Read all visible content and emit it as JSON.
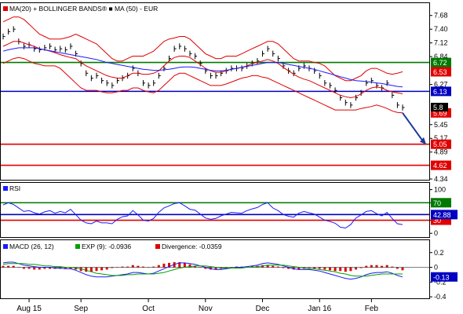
{
  "chart_data": [
    {
      "panel": "price",
      "type": "line",
      "title": "MA(20) + BOLLINGER BANDS® ■ MA (50) - EUR",
      "legend": [
        {
          "name": "MA(20) + BOLLINGER BANDS®",
          "color": "#e00000"
        },
        {
          "name": "MA (50) - EUR",
          "color": "#1a1aff"
        }
      ],
      "ylim": [
        4.34,
        7.9
      ],
      "y_ticks": [
        "7.68",
        "7.40",
        "7.12",
        "6.84",
        "6.27",
        "5.45",
        "5.17",
        "4.89",
        "4.34"
      ],
      "levels": [
        {
          "value": 6.72,
          "label": "6.72",
          "color": "#007a00"
        },
        {
          "value": 6.53,
          "label": "6.53",
          "color": "#e00000"
        },
        {
          "value": 6.13,
          "label": "6.13",
          "color": "#0000c0"
        },
        {
          "value": 5.69,
          "label": "5.69",
          "color": "#e00000"
        },
        {
          "value": 5.05,
          "label": "5.05",
          "color": "#e00000"
        },
        {
          "value": 4.62,
          "label": "4.62",
          "color": "#e00000"
        }
      ],
      "close_fragment": "5.8",
      "series": [
        {
          "key": "price",
          "color": "#000000",
          "values": [
            7.25,
            7.35,
            7.4,
            7.15,
            7.05,
            7.08,
            7.0,
            6.98,
            7.02,
            7.05,
            6.98,
            7.0,
            6.98,
            7.05,
            6.9,
            6.7,
            6.5,
            6.4,
            6.45,
            6.35,
            6.3,
            6.25,
            6.35,
            6.4,
            6.45,
            6.6,
            6.5,
            6.3,
            6.25,
            6.3,
            6.45,
            6.6,
            6.8,
            7.0,
            7.05,
            7.0,
            6.9,
            6.85,
            6.7,
            6.55,
            6.45,
            6.45,
            6.5,
            6.55,
            6.6,
            6.6,
            6.6,
            6.65,
            6.7,
            6.75,
            6.9,
            7.0,
            6.9,
            6.8,
            6.65,
            6.55,
            6.5,
            6.6,
            6.65,
            6.6,
            6.55,
            6.45,
            6.3,
            6.25,
            6.15,
            6.0,
            5.9,
            5.85,
            6.0,
            6.1,
            6.3,
            6.35,
            6.25,
            6.2,
            6.3,
            6.05,
            5.85,
            5.8
          ]
        },
        {
          "key": "bb-upper",
          "color": "#e00000",
          "values": [
            7.55,
            7.6,
            7.65,
            7.65,
            7.6,
            7.5,
            7.4,
            7.3,
            7.25,
            7.2,
            7.2,
            7.2,
            7.22,
            7.25,
            7.3,
            7.25,
            7.2,
            7.15,
            7.1,
            7.0,
            6.9,
            6.8,
            6.75,
            6.75,
            6.8,
            6.85,
            6.85,
            6.85,
            6.9,
            6.95,
            7.05,
            7.15,
            7.2,
            7.22,
            7.25,
            7.25,
            7.2,
            7.1,
            7.0,
            6.9,
            6.85,
            6.8,
            6.8,
            6.85,
            6.85,
            6.85,
            6.9,
            6.95,
            7.0,
            7.05,
            7.1,
            7.15,
            7.15,
            7.1,
            7.0,
            6.9,
            6.8,
            6.75,
            6.75,
            6.75,
            6.72,
            6.7,
            6.65,
            6.55,
            6.45,
            6.4,
            6.35,
            6.35,
            6.4,
            6.45,
            6.55,
            6.6,
            6.6,
            6.55,
            6.5,
            6.48,
            6.5,
            6.53
          ]
        },
        {
          "key": "bb-lower",
          "color": "#e00000",
          "values": [
            6.7,
            6.75,
            6.8,
            6.82,
            6.8,
            6.75,
            6.7,
            6.68,
            6.65,
            6.65,
            6.65,
            6.6,
            6.5,
            6.4,
            6.3,
            6.2,
            6.15,
            6.15,
            6.15,
            6.12,
            6.1,
            6.1,
            6.12,
            6.15,
            6.15,
            6.2,
            6.2,
            6.15,
            6.12,
            6.1,
            6.15,
            6.25,
            6.35,
            6.45,
            6.5,
            6.5,
            6.45,
            6.4,
            6.35,
            6.3,
            6.25,
            6.25,
            6.25,
            6.28,
            6.32,
            6.36,
            6.4,
            6.42,
            6.45,
            6.45,
            6.42,
            6.4,
            6.35,
            6.3,
            6.25,
            6.2,
            6.15,
            6.1,
            6.05,
            6.0,
            5.95,
            5.9,
            5.85,
            5.8,
            5.75,
            5.75,
            5.75,
            5.75,
            5.75,
            5.78,
            5.8,
            5.82,
            5.85,
            5.82,
            5.78,
            5.73,
            5.7,
            5.69
          ]
        },
        {
          "key": "ma20",
          "color": "#e00000",
          "values": [
            7.05,
            7.1,
            7.15,
            7.15,
            7.12,
            7.08,
            7.05,
            7.0,
            6.98,
            6.95,
            6.92,
            6.88,
            6.85,
            6.82,
            6.8,
            6.72,
            6.65,
            6.6,
            6.55,
            6.5,
            6.45,
            6.42,
            6.4,
            6.4,
            6.45,
            6.5,
            6.5,
            6.48,
            6.48,
            6.5,
            6.55,
            6.65,
            6.75,
            6.82,
            6.85,
            6.85,
            6.82,
            6.75,
            6.68,
            6.6,
            6.55,
            6.52,
            6.52,
            6.55,
            6.58,
            6.6,
            6.62,
            6.65,
            6.7,
            6.72,
            6.75,
            6.78,
            6.75,
            6.7,
            6.62,
            6.55,
            6.48,
            6.42,
            6.38,
            6.35,
            6.3,
            6.25,
            6.2,
            6.15,
            6.1,
            6.05,
            6.02,
            6.0,
            6.02,
            6.08,
            6.15,
            6.2,
            6.22,
            6.2,
            6.15,
            6.12,
            6.1,
            6.08
          ]
        },
        {
          "key": "ma50",
          "color": "#1a1aff",
          "values": [
            6.95,
            6.98,
            7.0,
            7.02,
            7.02,
            7.02,
            7.02,
            7.0,
            6.98,
            6.96,
            6.94,
            6.92,
            6.9,
            6.88,
            6.86,
            6.84,
            6.82,
            6.8,
            6.78,
            6.75,
            6.72,
            6.7,
            6.68,
            6.66,
            6.64,
            6.62,
            6.6,
            6.58,
            6.57,
            6.56,
            6.56,
            6.57,
            6.58,
            6.6,
            6.62,
            6.63,
            6.63,
            6.62,
            6.6,
            6.58,
            6.56,
            6.55,
            6.55,
            6.56,
            6.58,
            6.6,
            6.62,
            6.64,
            6.66,
            6.68,
            6.7,
            6.72,
            6.72,
            6.72,
            6.7,
            6.68,
            6.66,
            6.64,
            6.62,
            6.6,
            6.58,
            6.55,
            6.52,
            6.49,
            6.46,
            6.43,
            6.4,
            6.37,
            6.35,
            6.34,
            6.33,
            6.32,
            6.3,
            6.29,
            6.27,
            6.25,
            6.23,
            6.22
          ]
        }
      ],
      "forecast_arrow": {
        "from": 5.69,
        "to": 5.05
      }
    },
    {
      "panel": "rsi",
      "type": "line",
      "title": "RSI",
      "ylim": [
        -5,
        110
      ],
      "y_ticks": [
        "100",
        "70",
        "30",
        "0"
      ],
      "levels": [
        {
          "value": 70,
          "label": "70",
          "color": "#007a00"
        },
        {
          "value": 30,
          "label": "30",
          "color": "#e00000"
        },
        {
          "value": 42.88,
          "label": "42.88",
          "color": "#0000c0"
        }
      ],
      "series": [
        {
          "key": "rsi",
          "color": "#1a1aff",
          "values": [
            65,
            70,
            66,
            58,
            50,
            52,
            47,
            44,
            49,
            52,
            46,
            50,
            47,
            55,
            43,
            30,
            24,
            22,
            28,
            24,
            24,
            22,
            32,
            38,
            40,
            52,
            42,
            30,
            28,
            34,
            48,
            58,
            63,
            68,
            70,
            63,
            55,
            53,
            44,
            35,
            32,
            34,
            40,
            44,
            48,
            47,
            46,
            52,
            56,
            59,
            66,
            70,
            58,
            52,
            43,
            39,
            37,
            46,
            50,
            47,
            44,
            37,
            30,
            27,
            23,
            14,
            12,
            20,
            35,
            42,
            50,
            52,
            45,
            40,
            48,
            34,
            22,
            20
          ]
        }
      ]
    },
    {
      "panel": "macd",
      "type": "line",
      "title": "MACD (26, 12)",
      "legend": [
        {
          "name": "MACD (26, 12)",
          "color": "#1a1aff"
        },
        {
          "name": "EXP (9): -0.0936",
          "color": "#00a000"
        },
        {
          "name": "Divergence: -0.0359",
          "color": "#e00000"
        }
      ],
      "ylim": [
        -0.42,
        0.24
      ],
      "y_ticks": [
        "0.2",
        "0",
        "-0.2",
        "-0.4"
      ],
      "levels": [
        {
          "value": -0.13,
          "label": "-0.13",
          "color": "#0000c0"
        }
      ],
      "series": [
        {
          "key": "macd",
          "color": "#1a1aff",
          "values": [
            0.06,
            0.07,
            0.07,
            0.05,
            0.03,
            0.02,
            0.01,
            0.0,
            0.0,
            0.0,
            -0.01,
            -0.01,
            -0.02,
            -0.02,
            -0.04,
            -0.07,
            -0.1,
            -0.12,
            -0.13,
            -0.13,
            -0.13,
            -0.12,
            -0.11,
            -0.1,
            -0.09,
            -0.07,
            -0.07,
            -0.08,
            -0.09,
            -0.08,
            -0.05,
            -0.02,
            0.01,
            0.04,
            0.06,
            0.06,
            0.05,
            0.04,
            0.02,
            0.0,
            -0.02,
            -0.03,
            -0.03,
            -0.02,
            -0.01,
            0.0,
            0.0,
            0.01,
            0.02,
            0.03,
            0.05,
            0.06,
            0.05,
            0.04,
            0.02,
            0.0,
            -0.02,
            -0.03,
            -0.03,
            -0.03,
            -0.04,
            -0.05,
            -0.07,
            -0.09,
            -0.11,
            -0.13,
            -0.15,
            -0.16,
            -0.15,
            -0.13,
            -0.1,
            -0.08,
            -0.07,
            -0.07,
            -0.06,
            -0.08,
            -0.11,
            -0.13
          ]
        },
        {
          "key": "exp9",
          "color": "#00a000",
          "values": [
            0.04,
            0.05,
            0.05,
            0.05,
            0.05,
            0.04,
            0.04,
            0.03,
            0.02,
            0.02,
            0.01,
            0.01,
            0.0,
            0.0,
            -0.01,
            -0.02,
            -0.04,
            -0.06,
            -0.08,
            -0.09,
            -0.1,
            -0.11,
            -0.11,
            -0.11,
            -0.1,
            -0.1,
            -0.09,
            -0.09,
            -0.09,
            -0.09,
            -0.08,
            -0.07,
            -0.05,
            -0.03,
            -0.01,
            0.0,
            0.01,
            0.02,
            0.02,
            0.02,
            0.01,
            0.0,
            -0.01,
            -0.01,
            -0.01,
            -0.01,
            -0.01,
            0.0,
            0.0,
            0.01,
            0.02,
            0.03,
            0.03,
            0.03,
            0.03,
            0.02,
            0.01,
            0.0,
            -0.01,
            -0.02,
            -0.02,
            -0.03,
            -0.04,
            -0.05,
            -0.06,
            -0.08,
            -0.09,
            -0.11,
            -0.12,
            -0.12,
            -0.12,
            -0.11,
            -0.1,
            -0.09,
            -0.09,
            -0.09,
            -0.09,
            -0.09
          ]
        }
      ],
      "divergence": {
        "color": "#e00000",
        "values": [
          0.02,
          0.02,
          0.02,
          0.0,
          -0.02,
          -0.02,
          -0.03,
          -0.03,
          -0.02,
          -0.02,
          -0.02,
          -0.02,
          -0.02,
          -0.02,
          -0.03,
          -0.05,
          -0.06,
          -0.06,
          -0.05,
          -0.04,
          -0.03,
          -0.01,
          0.0,
          0.01,
          0.01,
          0.03,
          0.02,
          0.01,
          0.0,
          0.01,
          0.03,
          0.05,
          0.06,
          0.07,
          0.07,
          0.06,
          0.04,
          0.02,
          0.0,
          -0.02,
          -0.03,
          -0.03,
          -0.02,
          -0.01,
          0.0,
          0.01,
          0.01,
          0.01,
          0.02,
          0.02,
          0.03,
          0.03,
          0.02,
          0.01,
          -0.01,
          -0.02,
          -0.03,
          -0.03,
          -0.02,
          -0.01,
          -0.02,
          -0.02,
          -0.03,
          -0.04,
          -0.05,
          -0.05,
          -0.06,
          -0.05,
          -0.03,
          -0.01,
          0.02,
          0.03,
          0.03,
          0.02,
          0.03,
          0.01,
          -0.02,
          -0.04
        ]
      }
    }
  ],
  "x_axis": {
    "labels": [
      "Aug 15",
      "Sep",
      "Oct",
      "Nov",
      "Dec",
      "Jan 16",
      "Feb"
    ],
    "positions": [
      5,
      15,
      28,
      39,
      50,
      61,
      71
    ]
  }
}
